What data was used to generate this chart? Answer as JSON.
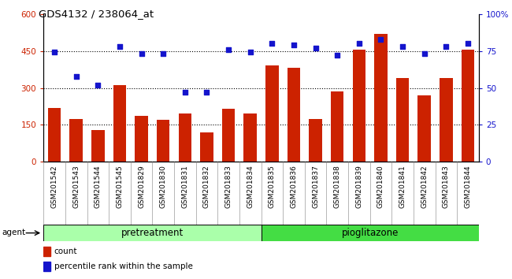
{
  "title": "GDS4132 / 238064_at",
  "categories": [
    "GSM201542",
    "GSM201543",
    "GSM201544",
    "GSM201545",
    "GSM201829",
    "GSM201830",
    "GSM201831",
    "GSM201832",
    "GSM201833",
    "GSM201834",
    "GSM201835",
    "GSM201836",
    "GSM201837",
    "GSM201838",
    "GSM201839",
    "GSM201840",
    "GSM201841",
    "GSM201842",
    "GSM201843",
    "GSM201844"
  ],
  "bar_values": [
    220,
    175,
    130,
    310,
    185,
    170,
    195,
    120,
    215,
    195,
    390,
    380,
    175,
    285,
    455,
    520,
    340,
    270,
    340,
    455
  ],
  "scatter_values": [
    74,
    58,
    52,
    78,
    73,
    73,
    47,
    47,
    76,
    74,
    80,
    79,
    77,
    72,
    80,
    83,
    78,
    73,
    78,
    80
  ],
  "pretreatment_count": 10,
  "pioglitazone_count": 10,
  "bar_color": "#CC2200",
  "scatter_color": "#1414CC",
  "ylim_left": [
    0,
    600
  ],
  "ylim_right": [
    0,
    100
  ],
  "yticks_left": [
    0,
    150,
    300,
    450,
    600
  ],
  "yticks_right": [
    0,
    25,
    50,
    75,
    100
  ],
  "ytick_labels_left": [
    "0",
    "150",
    "300",
    "450",
    "600"
  ],
  "ytick_labels_right": [
    "0",
    "25",
    "50",
    "75",
    "100%"
  ],
  "hlines": [
    150,
    300,
    450
  ],
  "agent_label": "agent",
  "pretreatment_label": "pretreatment",
  "pioglitazone_label": "pioglitazone",
  "legend_count_label": "count",
  "legend_percentile_label": "percentile rank within the sample",
  "pretreatment_color": "#AAFFAA",
  "pioglitazone_color": "#44DD44",
  "xtick_bg_color": "#C8C8C8",
  "bg_color": "white"
}
